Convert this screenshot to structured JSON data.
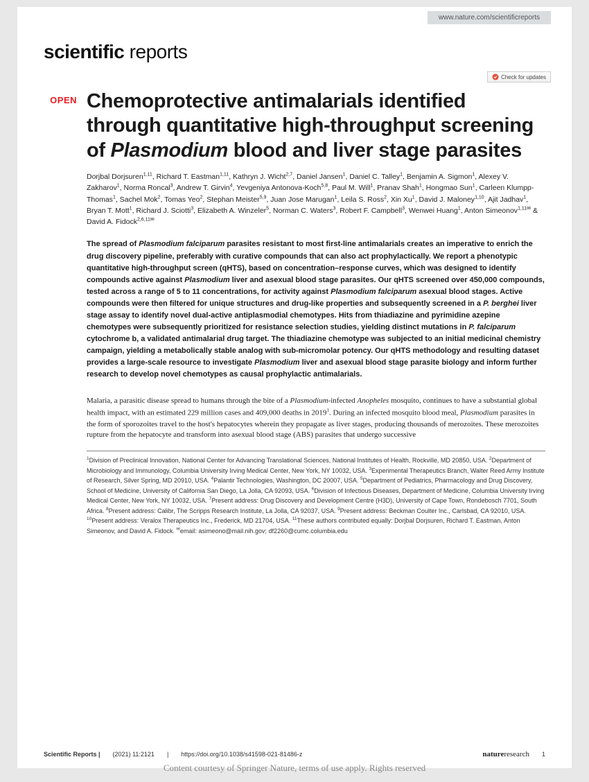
{
  "header": {
    "url": "www.nature.com/scientificreports",
    "journal_bold": "scientific",
    "journal_light": " reports",
    "check_updates": "Check for updates"
  },
  "open_label": "OPEN",
  "title_parts": {
    "line1": "Chemoprotective antimalarials identified through quantitative high-throughput screening of ",
    "italic": "Plasmodium",
    "line2": " blood and liver stage parasites"
  },
  "authors_html": "Dorjbal Dorjsuren<sup>1,11</sup>, Richard T. Eastman<sup>1,11</sup>, Kathryn J. Wicht<sup>2,7</sup>, Daniel Jansen<sup>1</sup>, Daniel C. Talley<sup>1</sup>, Benjamin A. Sigmon<sup>1</sup>, Alexey V. Zakharov<sup>1</sup>, Norma Roncal<sup>3</sup>, Andrew T. Girvin<sup>4</sup>, Yevgeniya Antonova-Koch<sup>5,8</sup>, Paul M. Will<sup>1</sup>, Pranav Shah<sup>1</sup>, Hongmao Sun<sup>1</sup>, Carleen Klumpp-Thomas<sup>1</sup>, Sachel Mok<sup>2</sup>, Tomas Yeo<sup>2</sup>, Stephan Meister<sup>5,9</sup>, Juan Jose Marugan<sup>1</sup>, Leila S. Ross<sup>2</sup>, Xin Xu<sup>1</sup>, David J. Maloney<sup>1,10</sup>, Ajit Jadhav<sup>1</sup>, Bryan T. Mott<sup>1</sup>, Richard J. Sciotti<sup>3</sup>, Elizabeth A. Winzeler<sup>5</sup>, Norman C. Waters<sup>3</sup>, Robert F. Campbell<sup>3</sup>, Wenwei Huang<sup>1</sup>, Anton Simeonov<sup>1,11✉</sup> & David A. Fidock<sup>2,6,11✉</sup>",
  "abstract_html": "The spread of <span class=\"italic\">Plasmodium falciparum</span> parasites resistant to most first-line antimalarials creates an imperative to enrich the drug discovery pipeline, preferably with curative compounds that can also act prophylactically. We report a phenotypic quantitative high-throughput screen (qHTS), based on concentration–response curves, which was designed to identify compounds active against <span class=\"italic\">Plasmodium</span> liver and asexual blood stage parasites. Our qHTS screened over 450,000 compounds, tested across a range of 5 to 11 concentrations, for activity against <span class=\"italic\">Plasmodium falciparum</span> asexual blood stages. Active compounds were then filtered for unique structures and drug-like properties and subsequently screened in a <span class=\"italic\">P. berghei</span> liver stage assay to identify novel dual-active antiplasmodial chemotypes. Hits from thiadiazine and pyrimidine azepine chemotypes were subsequently prioritized for resistance selection studies, yielding distinct mutations in <span class=\"italic\">P. falciparum</span> cytochrome b, a validated antimalarial drug target. The thiadiazine chemotype was subjected to an initial medicinal chemistry campaign, yielding a metabolically stable analog with sub-micromolar potency. Our qHTS methodology and resulting dataset provides a large-scale resource to investigate <span class=\"italic\">Plasmodium</span> liver and asexual blood stage parasite biology and inform further research to develop novel chemotypes as causal prophylactic antimalarials.",
  "body_html": "Malaria, a parasitic disease spread to humans through the bite of a <span class=\"italic\">Plasmodium</span>-infected <span class=\"italic\">Anopheles</span> mosquito, continues to have a substantial global health impact, with an estimated 229 million cases and 409,000 deaths in 2019<sup>1</sup>. During an infected mosquito blood meal, <span class=\"italic\">Plasmodium</span> parasites in the form of sporozoites travel to the host's hepatocytes wherein they propagate as liver stages, producing thousands of merozoites. These merozoites rupture from the hepatocyte and transform into asexual blood stage (ABS) parasites that undergo successive",
  "affiliations_html": "<sup>1</sup>Division of Preclinical Innovation, National Center for Advancing Translational Sciences, National Institutes of Health, Rockville, MD 20850, USA. <sup>2</sup>Department of Microbiology and Immunology, Columbia University Irving Medical Center, New York, NY 10032, USA. <sup>3</sup>Experimental Therapeutics Branch, Walter Reed Army Institute of Research, Silver Spring, MD 20910, USA. <sup>4</sup>Palantir Technologies, Washington, DC 20007, USA. <sup>5</sup>Department of Pediatrics, Pharmacology and Drug Discovery, School of Medicine, University of California San Diego, La Jolla, CA 92093, USA. <sup>6</sup>Division of Infectious Diseases, Department of Medicine, Columbia University Irving Medical Center, New York, NY 10032, USA. <sup>7</sup>Present address: Drug Discovery and Development Centre (H3D), University of Cape Town, Rondebosch 7701, South Africa. <sup>8</sup>Present address: Calibr, The Scripps Research Institute, La Jolla, CA 92037, USA. <sup>9</sup>Present address: Beckman Coulter Inc., Carlsbad, CA 92010, USA. <sup>10</sup>Present address: Veralox Therapeutics Inc., Frederick, MD 21704, USA. <sup>11</sup>These authors contributed equally: Dorjbal Dorjsuren, Richard T. Eastman, Anton Simeonov, and David A. Fidock. <sup>✉</sup>email: asimeono@mail.nih.gov; df2260@cumc.columbia.edu",
  "footer": {
    "journal": "Scientific Reports |",
    "citation": "(2021) 11:2121",
    "doi_sep": "|",
    "doi": "https://doi.org/10.1038/s41598-021-81486-z",
    "publisher_bold": "nature",
    "publisher_light": "research",
    "page": "1"
  },
  "watermark": "Content courtesy of Springer Nature, terms of use apply. Rights reserved",
  "colors": {
    "open_red": "#ed1c24",
    "url_bg": "#d9dde0",
    "page_bg": "#ffffff",
    "body_bg": "#e8e8e8"
  }
}
